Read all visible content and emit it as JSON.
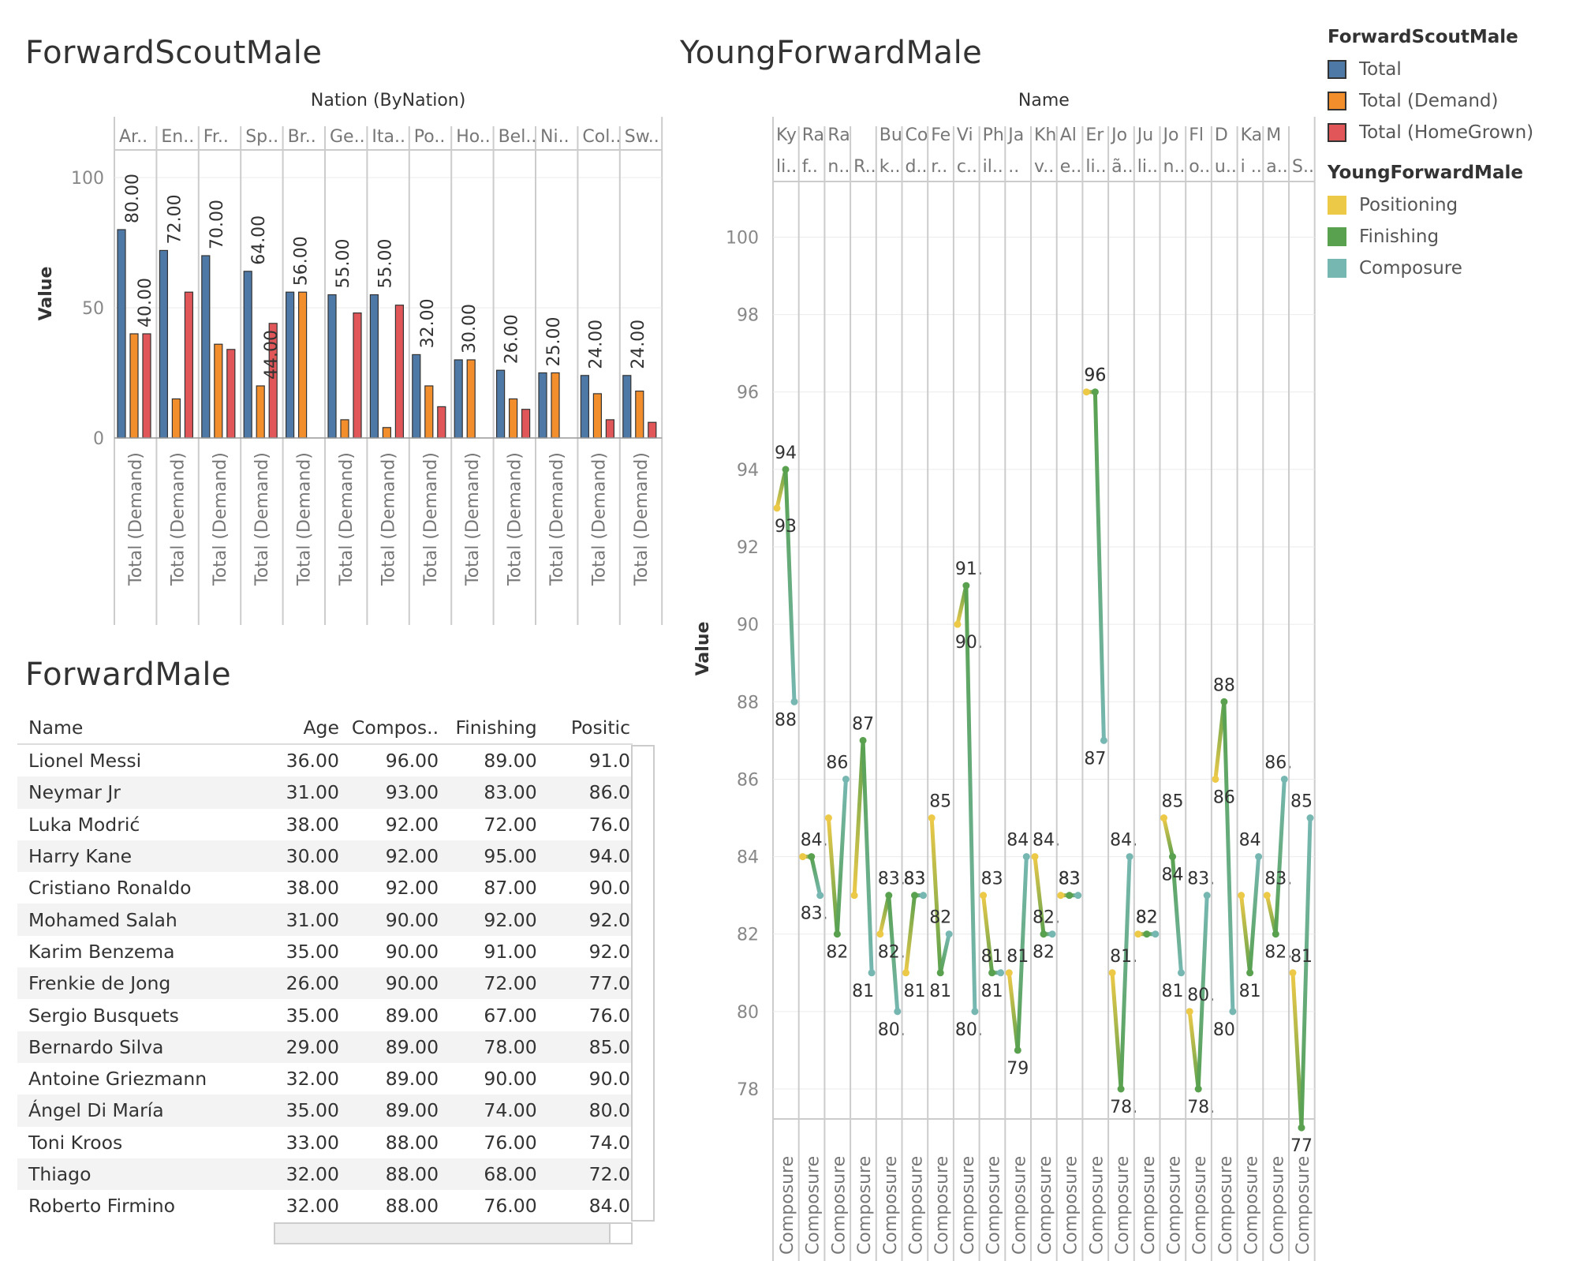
{
  "titles": {
    "scout": "ForwardScoutMale",
    "young": "YoungForwardMale",
    "forward": "ForwardMale"
  },
  "legend": {
    "scout_title": "ForwardScoutMale",
    "scout_items": [
      {
        "label": "Total",
        "color": "#4e79a7"
      },
      {
        "label": "Total (Demand)",
        "color": "#f28e2b"
      },
      {
        "label": "Total (HomeGrown)",
        "color": "#e15759"
      }
    ],
    "young_title": "YoungForwardMale",
    "young_items": [
      {
        "label": "Positioning",
        "color": "#edc948"
      },
      {
        "label": "Finishing",
        "color": "#59a14f"
      },
      {
        "label": "Composure",
        "color": "#76b7b2"
      }
    ]
  },
  "chart_data": [
    {
      "type": "bar",
      "title": "ForwardScoutMale",
      "header": "Nation (ByNation)",
      "ylabel": "Value",
      "ylim": [
        0,
        112
      ],
      "yticks": [
        0,
        50,
        100
      ],
      "categories": [
        "Ar..",
        "En..",
        "Fr..",
        "Sp..",
        "Br..",
        "Ge..",
        "Ita..",
        "Po..",
        "Ho..",
        "Bel..",
        "Ni..",
        "Col..",
        "Sw.."
      ],
      "bottom_label": "Total (Demand)",
      "series": [
        {
          "name": "Total",
          "values": [
            80,
            72,
            70,
            64,
            56,
            55,
            55,
            32,
            30,
            26,
            25,
            24,
            24
          ]
        },
        {
          "name": "Total (Demand)",
          "values": [
            40,
            15,
            36,
            20,
            56,
            7,
            4,
            20,
            30,
            15,
            25,
            17,
            18
          ]
        },
        {
          "name": "Total (HomeGrown)",
          "values": [
            40,
            56,
            34,
            44,
            0,
            48,
            51,
            12,
            0,
            11,
            0,
            7,
            6
          ]
        }
      ],
      "labels": [
        "80.00",
        "72.00",
        "70.00",
        "64.00",
        "56.00",
        "55.00",
        "55.00",
        "32.00",
        "30.00",
        "26.00",
        "25.00",
        "24.00",
        "24.00"
      ],
      "demand_labels": {
        "0": "40.00",
        "3": "44.00"
      }
    },
    {
      "type": "line",
      "title": "YoungForwardMale",
      "header": "Name",
      "ylabel": "Value",
      "ylim": [
        77,
        101
      ],
      "yticks": [
        78,
        80,
        82,
        84,
        86,
        88,
        90,
        92,
        94,
        96,
        98,
        100
      ],
      "bottom_label": "Composure",
      "columns": [
        {
          "h1": "Ky",
          "h2": "li..",
          "p": 93,
          "f": 94,
          "c": 88,
          "lp": "93",
          "lf": "94",
          "lc": "88"
        },
        {
          "h1": "Ra",
          "h2": "f..",
          "p": 84,
          "f": 84,
          "c": 83,
          "lp": "",
          "lf": "84.",
          "lc": "83."
        },
        {
          "h1": "Ra",
          "h2": "n..",
          "p": 85,
          "f": 82,
          "c": 86,
          "lp": "",
          "lf": "82",
          "lc": "86"
        },
        {
          "h1": "",
          "h2": "R..",
          "p": 83,
          "f": 87,
          "c": 81,
          "lp": "",
          "lf": "87",
          "lc": "81"
        },
        {
          "h1": "Bu",
          "h2": "k..",
          "p": 82,
          "f": 83,
          "c": 80,
          "lp": "82.",
          "lf": "83.",
          "lc": "80."
        },
        {
          "h1": "Co",
          "h2": "d..",
          "p": 81,
          "f": 83,
          "c": 83,
          "lp": "81",
          "lf": "83",
          "lc": "83"
        },
        {
          "h1": "Fe",
          "h2": "r..",
          "p": 85,
          "f": 81,
          "c": 82,
          "lp": "85",
          "lf": "81",
          "lc": "82"
        },
        {
          "h1": "Vi",
          "h2": "c..",
          "p": 90,
          "f": 91,
          "c": 80,
          "lp": "90.",
          "lf": "91.",
          "lc": "80."
        },
        {
          "h1": "Ph",
          "h2": "il..",
          "p": 83,
          "f": 81,
          "c": 81,
          "lp": "83",
          "lf": "81",
          "lc": "81"
        },
        {
          "h1": "Ja",
          "h2": "..",
          "p": 81,
          "f": 79,
          "c": 84,
          "lp": "81",
          "lf": "79",
          "lc": "84"
        },
        {
          "h1": "Kh",
          "h2": "v..",
          "p": 84,
          "f": 82,
          "c": 82,
          "lp": "84.",
          "lf": "82",
          "lc": "82."
        },
        {
          "h1": "Al",
          "h2": "e..",
          "p": 83,
          "f": 83,
          "c": 83,
          "lp": "83",
          "lf": "83",
          "lc": ""
        },
        {
          "h1": "Er",
          "h2": "li..",
          "p": 96,
          "f": 96,
          "c": 87,
          "lp": "96",
          "lf": "96",
          "lc": "87"
        },
        {
          "h1": "Jo",
          "h2": "ã..",
          "p": 81,
          "f": 78,
          "c": 84,
          "lp": "81.",
          "lf": "78.",
          "lc": "84."
        },
        {
          "h1": "Ju",
          "h2": "li..",
          "p": 82,
          "f": 82,
          "c": 82,
          "lp": "82",
          "lf": "82",
          "lc": ""
        },
        {
          "h1": "Jo",
          "h2": "n..",
          "p": 85,
          "f": 84,
          "c": 81,
          "lp": "85",
          "lf": "84",
          "lc": "81"
        },
        {
          "h1": "Fl",
          "h2": "o..",
          "p": 80,
          "f": 78,
          "c": 83,
          "lp": "80.",
          "lf": "78.",
          "lc": "83."
        },
        {
          "h1": "D",
          "h2": "u..",
          "p": 86,
          "f": 88,
          "c": 80,
          "lp": "86",
          "lf": "88",
          "lc": "80"
        },
        {
          "h1": "Ka",
          "h2": "i ..",
          "p": 83,
          "f": 81,
          "c": 84,
          "lp": "",
          "lf": "81",
          "lc": "84"
        },
        {
          "h1": "M",
          "h2": "a..",
          "p": 83,
          "f": 82,
          "c": 86,
          "lp": "83.",
          "lf": "82.",
          "lc": "86."
        },
        {
          "h1": "",
          "h2": "S..",
          "p": 81,
          "f": 77,
          "c": 85,
          "lp": "81",
          "lf": "77",
          "lc": "85"
        }
      ]
    }
  ],
  "table": {
    "headers": [
      "Name",
      "Age",
      "Compos..",
      "Finishing",
      "Positic"
    ],
    "rows": [
      [
        "Lionel Messi",
        "36.00",
        "96.00",
        "89.00",
        "91.0"
      ],
      [
        "Neymar Jr",
        "31.00",
        "93.00",
        "83.00",
        "86.0"
      ],
      [
        "Luka Modrić",
        "38.00",
        "92.00",
        "72.00",
        "76.0"
      ],
      [
        "Harry Kane",
        "30.00",
        "92.00",
        "95.00",
        "94.0"
      ],
      [
        "Cristiano Ronaldo",
        "38.00",
        "92.00",
        "87.00",
        "90.0"
      ],
      [
        "Mohamed Salah",
        "31.00",
        "90.00",
        "92.00",
        "92.0"
      ],
      [
        "Karim Benzema",
        "35.00",
        "90.00",
        "91.00",
        "92.0"
      ],
      [
        "Frenkie de Jong",
        "26.00",
        "90.00",
        "72.00",
        "77.0"
      ],
      [
        "Sergio Busquets",
        "35.00",
        "89.00",
        "67.00",
        "76.0"
      ],
      [
        "Bernardo Silva",
        "29.00",
        "89.00",
        "78.00",
        "85.0"
      ],
      [
        "Antoine Griezmann",
        "32.00",
        "89.00",
        "90.00",
        "90.0"
      ],
      [
        "Ángel Di María",
        "35.00",
        "89.00",
        "74.00",
        "80.0"
      ],
      [
        "Toni Kroos",
        "33.00",
        "88.00",
        "76.00",
        "74.0"
      ],
      [
        "Thiago",
        "32.00",
        "88.00",
        "68.00",
        "72.0"
      ],
      [
        "Roberto Firmino",
        "32.00",
        "88.00",
        "76.00",
        "84.0"
      ]
    ]
  }
}
